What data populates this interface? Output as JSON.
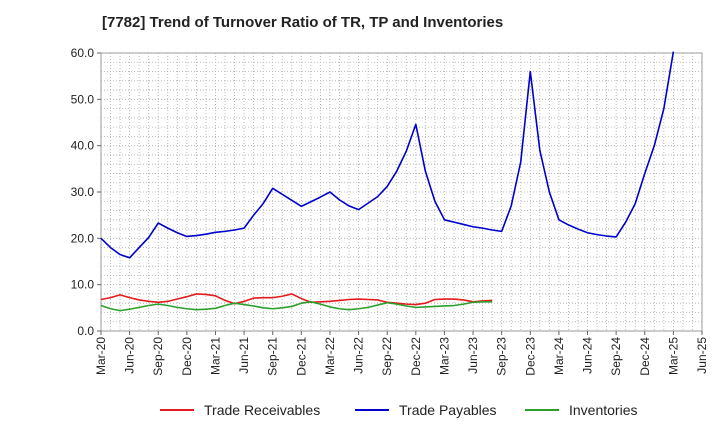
{
  "chart_data": {
    "type": "line",
    "title": "[7782]  Trend of Turnover Ratio of TR, TP and Inventories",
    "xlabel": "",
    "ylabel": "",
    "ylim": [
      0,
      60
    ],
    "yticks": [
      "0.0",
      "10.0",
      "20.0",
      "30.0",
      "40.0",
      "50.0",
      "60.0"
    ],
    "xticks": [
      "Mar-20",
      "Jun-20",
      "Sep-20",
      "Dec-20",
      "Mar-21",
      "Jun-21",
      "Sep-21",
      "Dec-21",
      "Mar-22",
      "Jun-22",
      "Sep-22",
      "Dec-22",
      "Mar-23",
      "Jun-23",
      "Sep-23",
      "Dec-23",
      "Mar-24",
      "Jun-24",
      "Sep-24",
      "Dec-24",
      "Mar-25",
      "Jun-25"
    ],
    "grid": true,
    "legend_position": "bottom",
    "series": [
      {
        "name": "Trade Receivables",
        "color": "#e41a1c",
        "values": [
          6.8,
          7.2,
          7.8,
          7.2,
          6.7,
          6.4,
          6.2,
          6.4,
          6.9,
          7.4,
          8.0,
          7.9,
          7.6,
          6.6,
          5.9,
          6.4,
          7.1,
          7.2,
          7.2,
          7.5,
          8.0,
          7.0,
          6.2,
          6.3,
          6.4,
          6.6,
          6.8,
          6.9,
          6.8,
          6.7,
          6.2,
          6.0,
          5.8,
          5.7,
          6.0,
          6.8,
          6.9,
          6.9,
          6.7,
          6.3,
          6.5,
          6.6
        ]
      },
      {
        "name": "Trade Payables",
        "color": "#0000cc",
        "values": [
          20.0,
          18.0,
          16.5,
          15.8,
          18.0,
          20.2,
          23.3,
          22.2,
          21.2,
          20.4,
          20.6,
          20.9,
          21.3,
          21.5,
          21.8,
          22.2,
          25.0,
          27.5,
          30.8,
          29.5,
          28.2,
          26.9,
          27.9,
          28.9,
          30.0,
          28.3,
          27.0,
          26.2,
          27.6,
          29.0,
          31.2,
          34.5,
          38.8,
          44.6,
          34.5,
          28.0,
          24.0,
          23.5,
          23.0,
          22.5,
          22.2,
          21.8,
          21.5,
          27.0,
          36.5,
          56.0,
          39.0,
          30.0,
          24.0,
          22.9,
          22.0,
          21.2,
          20.8,
          20.5,
          20.3,
          23.5,
          27.5,
          34.0,
          40.0,
          48.0,
          60.3
        ]
      },
      {
        "name": "Inventories",
        "color": "#2ca02c",
        "values": [
          5.5,
          4.8,
          4.4,
          4.7,
          5.1,
          5.5,
          5.8,
          5.5,
          5.1,
          4.8,
          4.6,
          4.7,
          4.9,
          5.5,
          6.0,
          5.7,
          5.4,
          5.0,
          4.8,
          5.0,
          5.3,
          6.0,
          6.3,
          5.8,
          5.2,
          4.8,
          4.6,
          4.8,
          5.1,
          5.6,
          6.1,
          5.8,
          5.4,
          5.1,
          5.2,
          5.3,
          5.4,
          5.5,
          5.8,
          6.2,
          6.3,
          6.3
        ]
      }
    ]
  }
}
